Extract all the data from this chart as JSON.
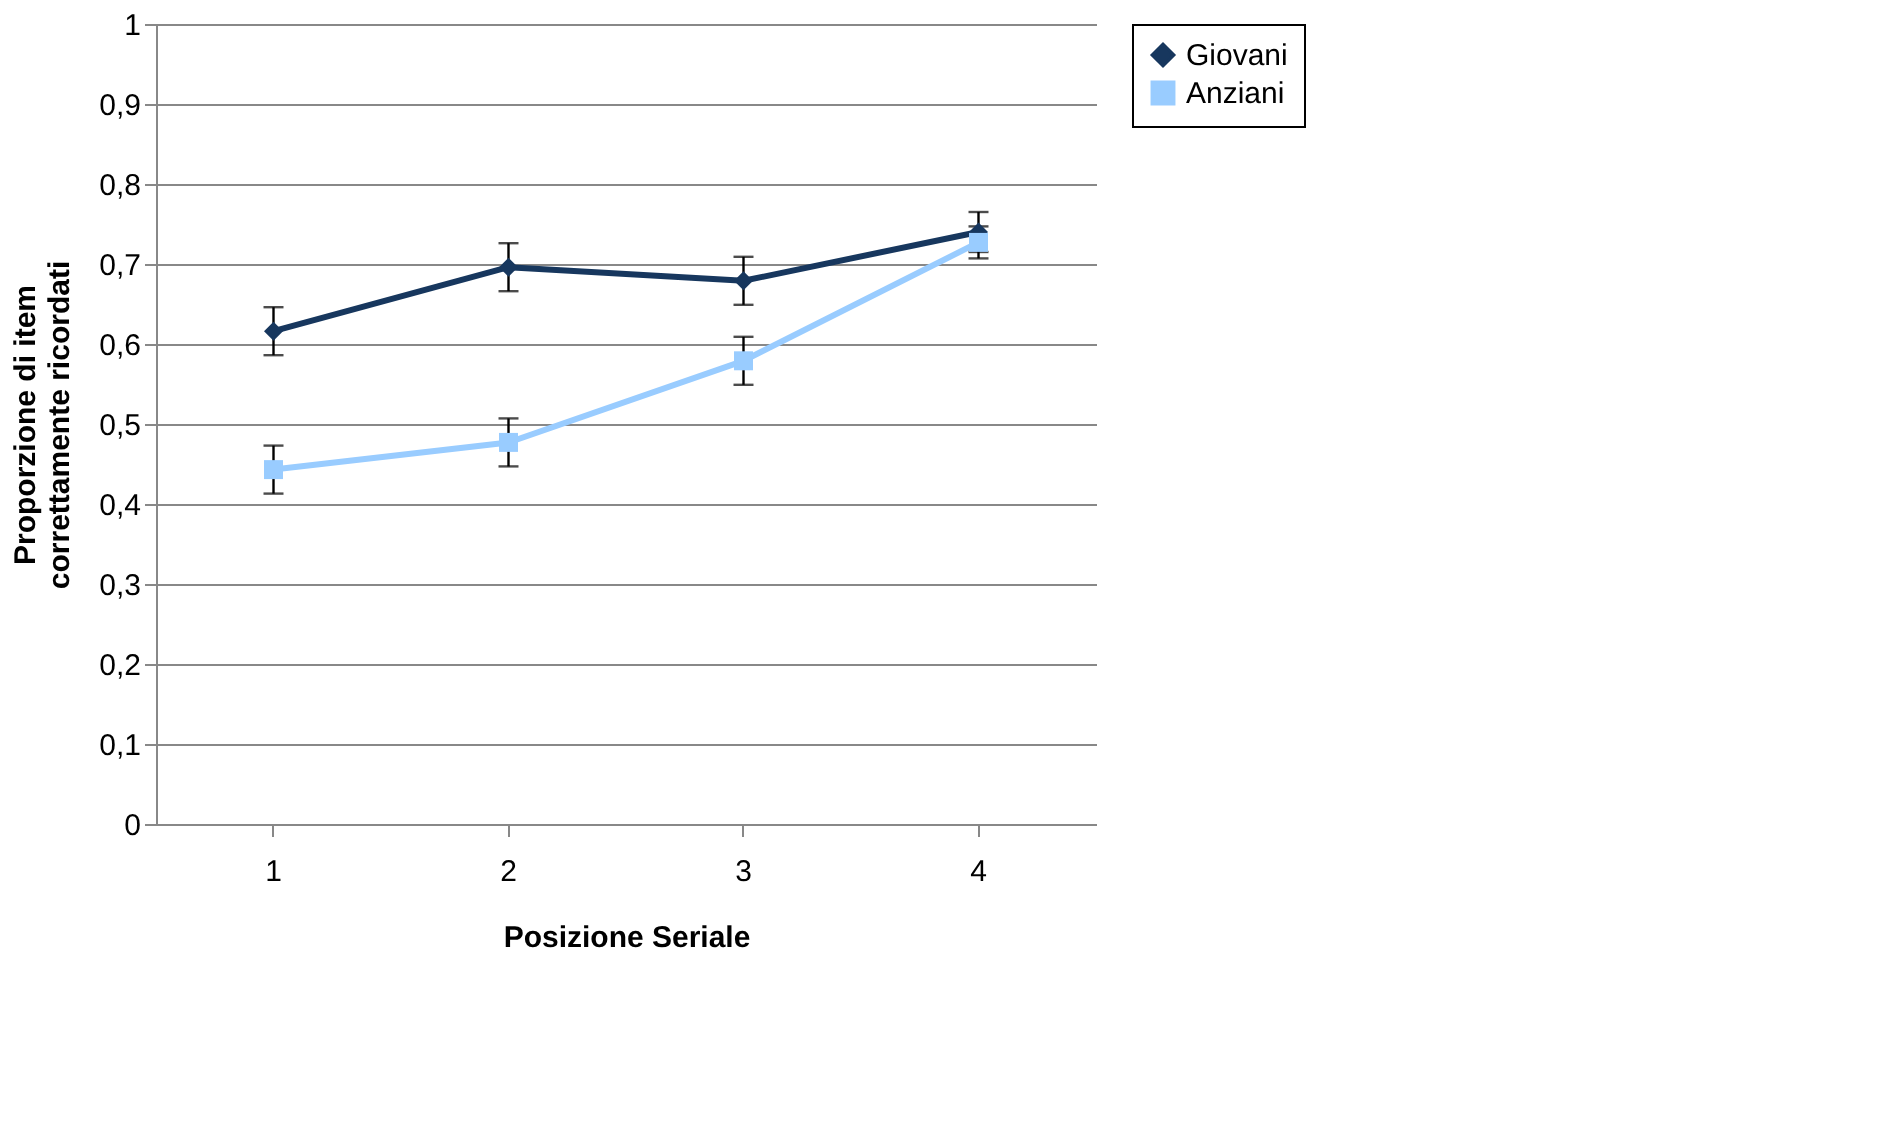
{
  "chart_data": {
    "type": "line",
    "xlabel": "Posizione Seriale",
    "ylabel": "Proporzione di item\ncorrettamente ricordati",
    "categories": [
      "1",
      "2",
      "3",
      "4"
    ],
    "series": [
      {
        "name": "Giovani",
        "color": "#17375e",
        "marker": "diamond",
        "values": [
          0.616,
          0.696,
          0.679,
          0.74
        ],
        "errors": [
          0.03,
          0.03,
          0.03,
          0.025
        ]
      },
      {
        "name": "Anziani",
        "color": "#99ccff",
        "marker": "square",
        "values": [
          0.443,
          0.477,
          0.579,
          0.727
        ],
        "errors": [
          0.03,
          0.03,
          0.03,
          0.02
        ]
      }
    ],
    "ylim": [
      0,
      1
    ],
    "yticks": [
      0,
      {
        "value": 0.1,
        "label": "0,1"
      },
      {
        "value": 0.2,
        "label": "0,2"
      },
      {
        "value": 0.3,
        "label": "0,3"
      },
      {
        "value": 0.4,
        "label": "0,4"
      },
      {
        "value": 0.5,
        "label": "0,5"
      },
      {
        "value": 0.6,
        "label": "0,6"
      },
      {
        "value": 0.7,
        "label": "0,7"
      },
      {
        "value": 0.8,
        "label": "0,8"
      },
      {
        "value": 0.9,
        "label": "0,9"
      },
      1
    ],
    "grid": "y",
    "legend": "right",
    "line_style": "solid"
  }
}
